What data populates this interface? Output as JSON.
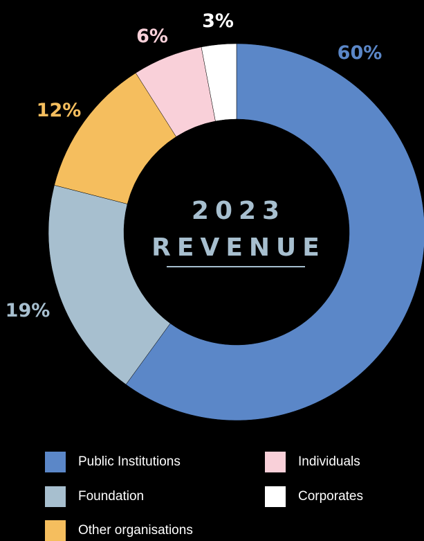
{
  "chart_data": {
    "type": "donut",
    "title": "2023",
    "subtitle": "REVENUE",
    "categories": [
      "Public Institutions",
      "Foundation",
      "Other organisations",
      "Individuals",
      "Corporates"
    ],
    "values": [
      60,
      19,
      12,
      6,
      3
    ],
    "value_labels": [
      "60%",
      "19%",
      "12%",
      "6%",
      "3%"
    ],
    "colors": [
      "#5b87c8",
      "#a7bfcf",
      "#f5be5e",
      "#f9d0d9",
      "#ffffff"
    ],
    "legend": "bottom"
  }
}
